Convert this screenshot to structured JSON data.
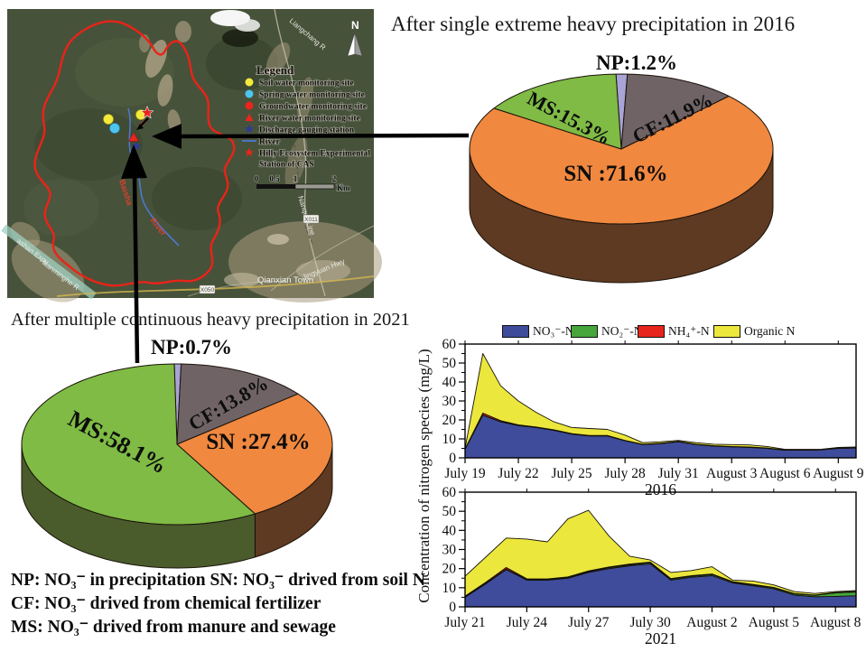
{
  "ylabel": "Concentration of nitrogen species (mg/L)",
  "defs": {
    "line1": "NP: NO₃⁻ in precipitation  SN: NO₃⁻ drived from soil N",
    "line2": "CF: NO₃⁻ drived from chemical fertilizer",
    "line3": "MS: NO₃⁻ drived from manure and sewage"
  },
  "map": {
    "legend_title": "Legend",
    "legend_items": [
      {
        "label": "Soil water monitoring site",
        "marker": "circle",
        "color": "#f4ea3b"
      },
      {
        "label": "Spring water monitoring site",
        "marker": "circle",
        "color": "#4ec4f1"
      },
      {
        "label": "Groundwater monitoring site",
        "marker": "circle",
        "color": "#e9251c"
      },
      {
        "label": "River water monitoring site",
        "marker": "triangle",
        "color": "#e9251c"
      },
      {
        "label": "Discharge gauging station",
        "marker": "star",
        "color": "#2d3a96"
      },
      {
        "label": "River",
        "marker": "line",
        "color": "#4b79cf"
      },
      {
        "label": "Hilly Ecosystem Experimental Station of CAS",
        "marker": "star",
        "color": "#e9251c"
      }
    ],
    "legend_item7_line1": "Hilly Ecosystem Experimental",
    "legend_item7_line2": "Station of CAS",
    "north": "N",
    "scale": {
      "ticks": [
        "0",
        "0.5",
        "1",
        "2"
      ],
      "unit": "Km"
    },
    "places": {
      "town": "Qianxian Town",
      "hwy": "Jingyuan Hwy",
      "expy": "ashan Expy",
      "river2": "Nanminghe R",
      "rail": "Nanque Line",
      "road1": "X011",
      "road2": "X050",
      "riverA": "Baisha",
      "riverB": "River",
      "top": "Liangchang R"
    }
  },
  "chart_data": [
    {
      "type": "pie",
      "id": "pie-2016",
      "title": "After single extreme heavy precipitation in 2016",
      "units": "%",
      "slices": [
        {
          "key": "NP",
          "label": "NP:1.2%",
          "value": 1.2,
          "color": "#a8a4d7",
          "side": "#555178"
        },
        {
          "key": "CF",
          "label": "CF:11.9%",
          "value": 11.9,
          "color": "#6f6366",
          "side": "#3f3839"
        },
        {
          "key": "SN",
          "label": "SN :71.6%",
          "value": 71.6,
          "color": "#f0883f",
          "side": "#5e3a22"
        },
        {
          "key": "MS",
          "label": "MS:15.3%",
          "value": 15.3,
          "color": "#7fbb45",
          "side": "#4a5c2c"
        }
      ]
    },
    {
      "type": "pie",
      "id": "pie-2021",
      "title": "After multiple continuous heavy precipitation in 2021",
      "units": "%",
      "slices": [
        {
          "key": "NP",
          "label": "NP:0.7%",
          "value": 0.7,
          "color": "#a8a4d7",
          "side": "#555178"
        },
        {
          "key": "CF",
          "label": "CF:13.8%",
          "value": 13.8,
          "color": "#6f6366",
          "side": "#3f3839"
        },
        {
          "key": "SN",
          "label": "SN :27.4%",
          "value": 27.4,
          "color": "#f0883f",
          "side": "#5e3a22"
        },
        {
          "key": "MS",
          "label": "MS:58.1%",
          "value": 58.1,
          "color": "#7fbb45",
          "side": "#4a5c2c"
        }
      ]
    },
    {
      "type": "area",
      "id": "area-2016",
      "xlabel": "2016",
      "ylabel": "Concentration of nitrogen species (mg/L)",
      "ylim": [
        0,
        60
      ],
      "y_ticks": [
        0,
        10,
        20,
        30,
        40,
        50,
        60
      ],
      "y_minor_step": 5,
      "x_tick_labels": [
        "July 19",
        "July 22",
        "July 25",
        "July 28",
        "July 31",
        "August 3",
        "August 6",
        "August 9"
      ],
      "x_tick_days": [
        0,
        3,
        6,
        9,
        12,
        15,
        18,
        21
      ],
      "series": [
        {
          "name": "NO₃⁻-N",
          "color": "#3f4c9b",
          "values": [
            4.5,
            22.5,
            19,
            17,
            16,
            14.5,
            12.5,
            11.5,
            11.5,
            9,
            7,
            7.5,
            8.5,
            7,
            6.2,
            5.8,
            5.5,
            5,
            4,
            4,
            4.2,
            5,
            5.2
          ]
        },
        {
          "name": "NO₂⁻-N",
          "color": "#46a63c",
          "values": [
            0.1,
            0.1,
            0.1,
            0.1,
            0.1,
            0.1,
            0.1,
            0.1,
            0.1,
            0.1,
            0.1,
            0.1,
            0.1,
            0.1,
            0.1,
            0.1,
            0.1,
            0.1,
            0.1,
            0.1,
            0.1,
            0.1,
            0.1
          ]
        },
        {
          "name": "NH₄⁺-N",
          "color": "#e8251d",
          "values": [
            0.2,
            1,
            0.5,
            0.3,
            0.2,
            0.2,
            0.2,
            0.2,
            0.2,
            0.1,
            0.1,
            0.1,
            0.1,
            0.1,
            0.1,
            0.1,
            0.1,
            0.1,
            0.1,
            0.1,
            0.1,
            0.1,
            0.1
          ]
        },
        {
          "name": "Organic N",
          "color": "#ece73c",
          "values": [
            0.2,
            31.4,
            18.4,
            12.6,
            7.7,
            4.2,
            3.2,
            3.7,
            3.2,
            2.8,
            0.8,
            0.8,
            0.5,
            0.8,
            0.8,
            1.0,
            1.1,
            0.8,
            0.3,
            0.3,
            0.1,
            0.3,
            0.3
          ]
        }
      ]
    },
    {
      "type": "area",
      "id": "area-2021",
      "xlabel": "2021",
      "ylabel": "Concentration of nitrogen species (mg/L)",
      "ylim": [
        0,
        60
      ],
      "y_ticks": [
        0,
        10,
        20,
        30,
        40,
        50,
        60
      ],
      "y_minor_step": 5,
      "x_tick_labels": [
        "July 21",
        "July 24",
        "July 27",
        "July 30",
        "August 2",
        "August 5",
        "August 8"
      ],
      "x_tick_days": [
        0,
        3,
        6,
        9,
        12,
        15,
        18
      ],
      "series": [
        {
          "name": "NO₃⁻-N",
          "color": "#3f4c9b",
          "values": [
            5,
            12,
            19.5,
            14,
            14,
            15,
            18,
            20,
            21.5,
            22.5,
            14,
            15.5,
            16.3,
            12.5,
            11,
            9.5,
            6.2,
            5.3,
            5.5,
            5.8
          ]
        },
        {
          "name": "NO₂⁻-N",
          "color": "#46a63c",
          "values": [
            0.3,
            0.3,
            0.3,
            0.3,
            0.3,
            0.4,
            0.4,
            0.5,
            0.5,
            0.6,
            0.5,
            0.5,
            0.6,
            0.5,
            0.5,
            0.5,
            0.6,
            0.7,
            1.8,
            2.0
          ]
        },
        {
          "name": "NH₄⁺-N",
          "color": "#e8251d",
          "values": [
            0.3,
            0.5,
            0.8,
            0.4,
            0.3,
            0.3,
            0.4,
            0.4,
            0.4,
            0.3,
            0.3,
            0.3,
            0.3,
            0.2,
            0.2,
            0.2,
            0.2,
            0.2,
            0.2,
            0.2
          ]
        },
        {
          "name": "Organic N",
          "color": "#ece73c",
          "values": [
            10.4,
            13.2,
            15.4,
            20.8,
            19.4,
            30.3,
            31.7,
            16.1,
            4.1,
            1.1,
            3.2,
            2.7,
            3.8,
            0.8,
            1.8,
            1.3,
            1.0,
            0.8,
            0.5,
            0.5
          ]
        }
      ]
    }
  ]
}
